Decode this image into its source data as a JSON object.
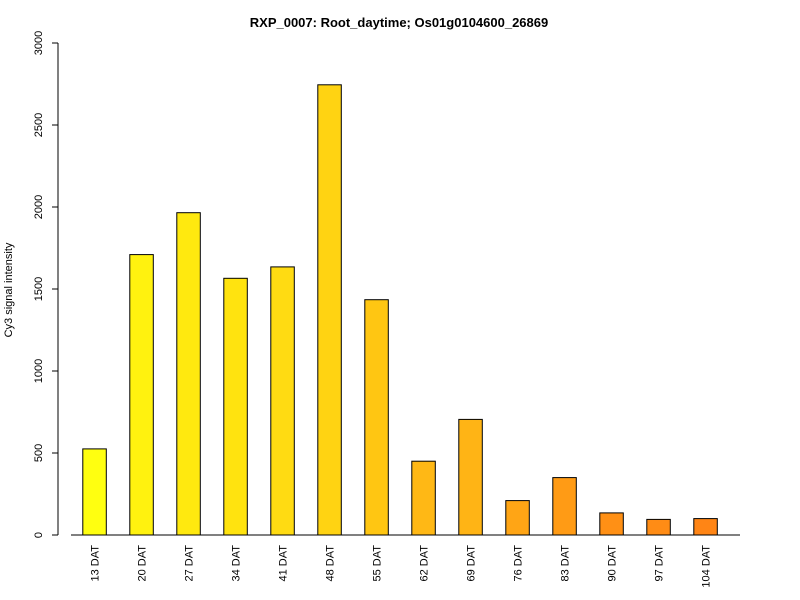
{
  "chart_data": {
    "type": "bar",
    "title": "RXP_0007: Root_daytime; Os01g0104600_26869",
    "xlabel": "",
    "ylabel": "Cy3 signal intensity",
    "ylim": [
      0,
      3000
    ],
    "yticks": [
      0,
      500,
      1000,
      1500,
      2000,
      2500,
      3000
    ],
    "categories": [
      "13 DAT",
      "20 DAT",
      "27 DAT",
      "34 DAT",
      "41 DAT",
      "48 DAT",
      "55 DAT",
      "62 DAT",
      "69 DAT",
      "76 DAT",
      "83 DAT",
      "90 DAT",
      "97 DAT",
      "104 DAT"
    ],
    "values": [
      525,
      1710,
      1965,
      1565,
      1635,
      2745,
      1435,
      450,
      705,
      210,
      350,
      135,
      95,
      100
    ],
    "colors": [
      "#ffff10",
      "#fff20f",
      "#ffe90f",
      "#ffe30f",
      "#ffdb12",
      "#ffd312",
      "#ffc612",
      "#ffb815",
      "#ffb415",
      "#ffa515",
      "#ff9b15",
      "#ff9015",
      "#ff8c15",
      "#ff8515"
    ],
    "grid": false
  }
}
